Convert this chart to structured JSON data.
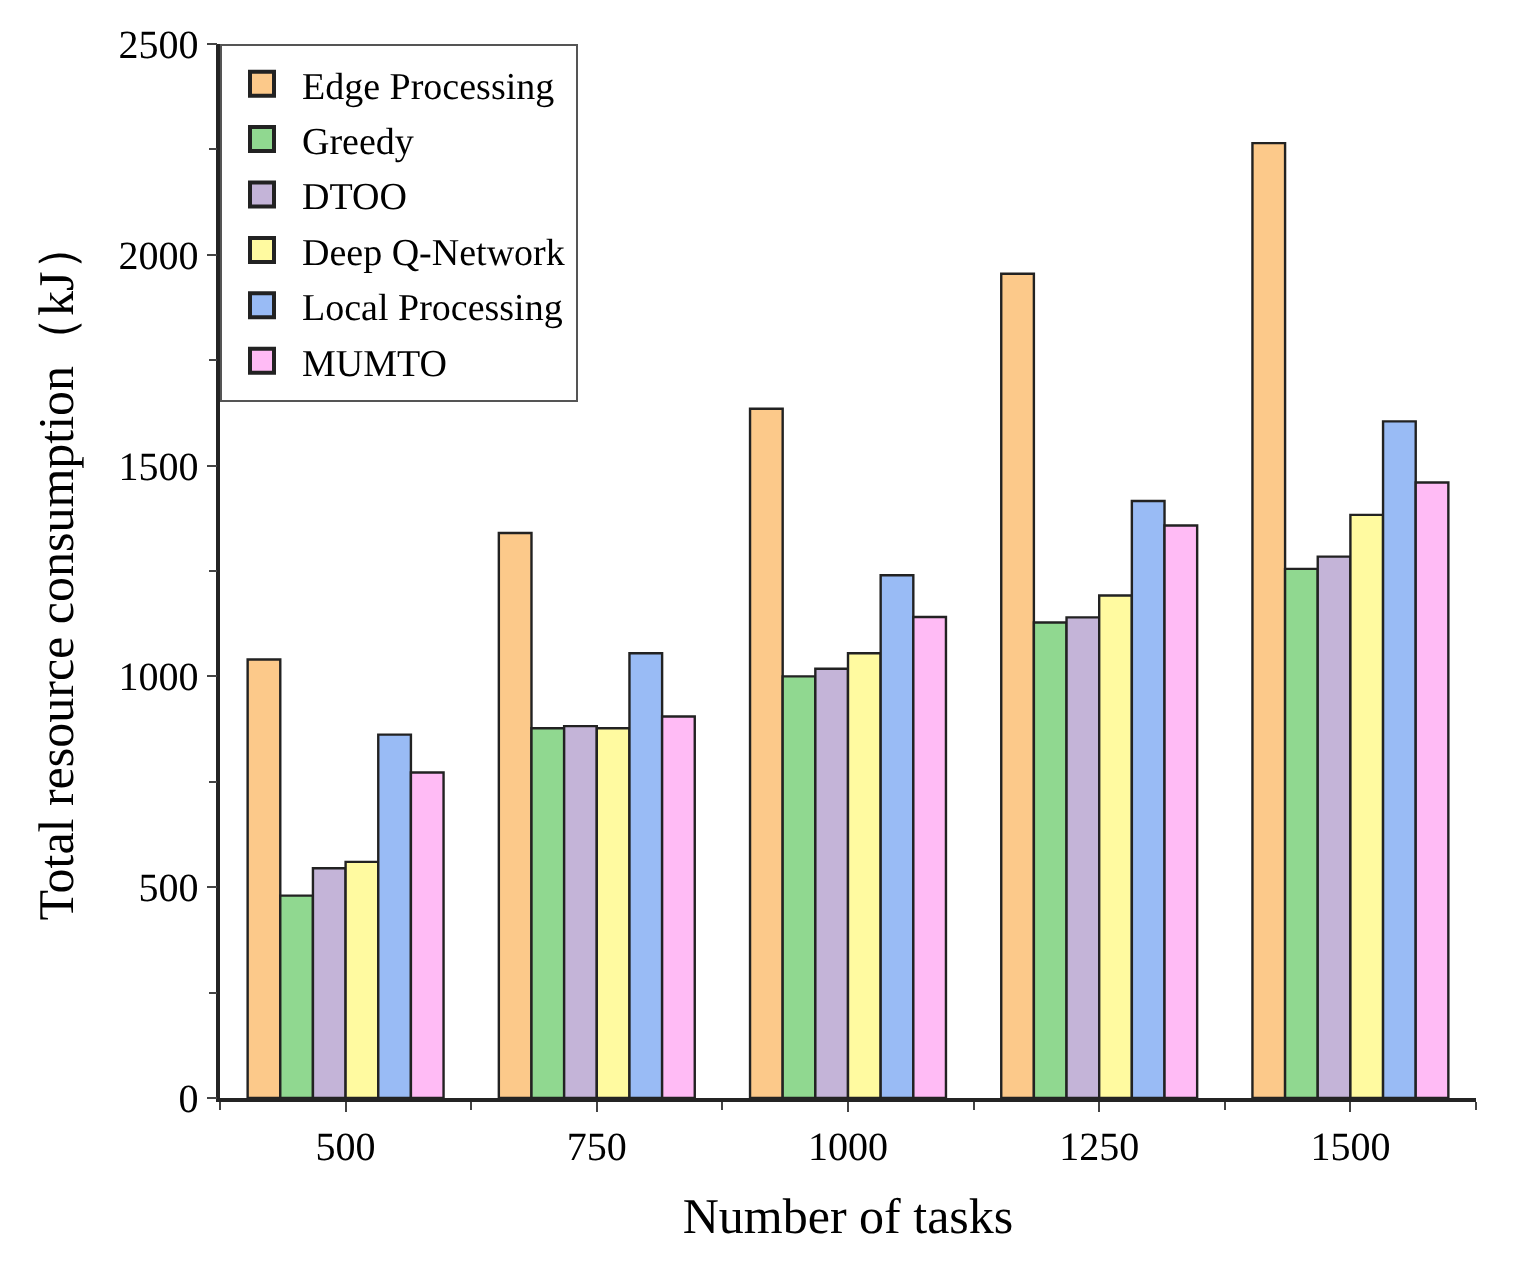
{
  "chart_data": {
    "type": "bar",
    "xlabel": "Number of tasks",
    "ylabel": "Total resource consumption（kJ）",
    "categories": [
      "500",
      "750",
      "1000",
      "1250",
      "1500"
    ],
    "series": [
      {
        "name": "Edge Processing",
        "color": "#fcc98a",
        "values": [
          1040,
          1340,
          1635,
          1955,
          2265
        ]
      },
      {
        "name": "Greedy",
        "color": "#90d890",
        "values": [
          480,
          877,
          1000,
          1128,
          1255
        ]
      },
      {
        "name": "DTOO",
        "color": "#c4b4d8",
        "values": [
          545,
          882,
          1018,
          1140,
          1284
        ]
      },
      {
        "name": "Deep Q-Network",
        "color": "#fffaa0",
        "values": [
          560,
          877,
          1055,
          1192,
          1383
        ]
      },
      {
        "name": "Local Processing",
        "color": "#99bbf5",
        "values": [
          862,
          1055,
          1240,
          1416,
          1605
        ]
      },
      {
        "name": "MUMTO",
        "color": "#ffbbf5",
        "values": [
          772,
          905,
          1141,
          1358,
          1460
        ]
      }
    ],
    "ylim": [
      0,
      2500
    ],
    "yticks": [
      0,
      500,
      1000,
      1500,
      2000,
      2500
    ],
    "grid": false,
    "legend": "top left"
  }
}
